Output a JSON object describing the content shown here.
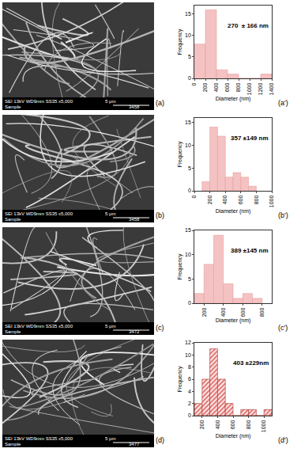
{
  "chart_data": [
    {
      "type": "bar",
      "panel": "(a')",
      "x_label": "Diameter (nm)",
      "y_label": "Frequency",
      "bins": [
        0,
        200,
        400,
        600,
        800,
        1000,
        1200,
        1400
      ],
      "values": [
        8,
        16,
        2,
        1,
        0,
        0,
        1
      ],
      "color": "#f4c2c2",
      "xlim": [
        0,
        1400
      ],
      "xticks": [
        0,
        200,
        400,
        600,
        800,
        1000,
        1200,
        1400
      ],
      "ylim": [
        0,
        17
      ],
      "yticks": [
        0,
        5,
        10,
        15
      ],
      "grid": false,
      "annotations": [
        "270  ± 166 nm"
      ]
    },
    {
      "type": "bar",
      "panel": "(b')",
      "x_label": "Diameter (nm)",
      "y_label": "Frequency",
      "bins": [
        100,
        200,
        300,
        400,
        500,
        600,
        700,
        800
      ],
      "values": [
        2,
        14,
        12,
        3,
        4,
        3,
        1
      ],
      "color": "#f4c2c2",
      "xlim": [
        0,
        1000
      ],
      "xticks": [
        0,
        200,
        400,
        600,
        800,
        1000
      ],
      "ylim": [
        0,
        16
      ],
      "yticks": [
        0,
        5,
        10,
        15
      ],
      "grid": false,
      "annotations": [
        "357 ±149 nm"
      ]
    },
    {
      "type": "bar",
      "panel": "(c')",
      "x_label": "Diameter (nm)",
      "y_label": "Frequency",
      "bins": [
        100,
        200,
        300,
        400,
        500,
        600,
        700,
        800
      ],
      "values": [
        2,
        8,
        14,
        4,
        1,
        2,
        1
      ],
      "color": "#f4c2c2",
      "xlim": [
        100,
        900
      ],
      "xticks": [
        200,
        400,
        600,
        800
      ],
      "ylim": [
        0,
        15
      ],
      "yticks": [
        0,
        5,
        10,
        15
      ],
      "grid": false,
      "annotations": [
        "389 ±145 nm"
      ]
    },
    {
      "type": "bar",
      "panel": "(d')",
      "x_label": "Diameter (nm)",
      "y_label": "Frequency",
      "bins": [
        100,
        200,
        300,
        400,
        500,
        600,
        700,
        800,
        900,
        1000,
        1100
      ],
      "values": [
        2,
        6,
        11,
        6,
        2,
        0,
        1,
        1,
        0,
        1
      ],
      "color": "#d9534f",
      "marker": "hatch",
      "xlim": [
        100,
        1100
      ],
      "xticks": [
        200,
        400,
        600,
        800,
        1000
      ],
      "ylim": [
        0,
        12
      ],
      "yticks": [
        0,
        2,
        4,
        6,
        8,
        10,
        12
      ],
      "grid": false,
      "annotations": [
        "403 ±229nm"
      ]
    }
  ],
  "micrographs": [
    {
      "panel": "(a)",
      "info": "SEI 13kV WD9mm SS35 x5,000",
      "scale": "5 μm",
      "sample": "Sample",
      "id": "3458"
    },
    {
      "panel": "(b)",
      "info": "SEI 13kV WD9mm SS35 x5,000",
      "scale": "5 μm",
      "sample": "Sample",
      "id": "3458"
    },
    {
      "panel": "(c)",
      "info": "SEI 13kV WD9mm SS35 x5,000",
      "scale": "5 μm",
      "sample": "Sample",
      "id": "3472"
    },
    {
      "panel": "(d)",
      "info": "SEI 13kV WD9mm SS35 x5,000",
      "scale": "5 μm",
      "sample": "Sample",
      "id": "3477"
    }
  ]
}
